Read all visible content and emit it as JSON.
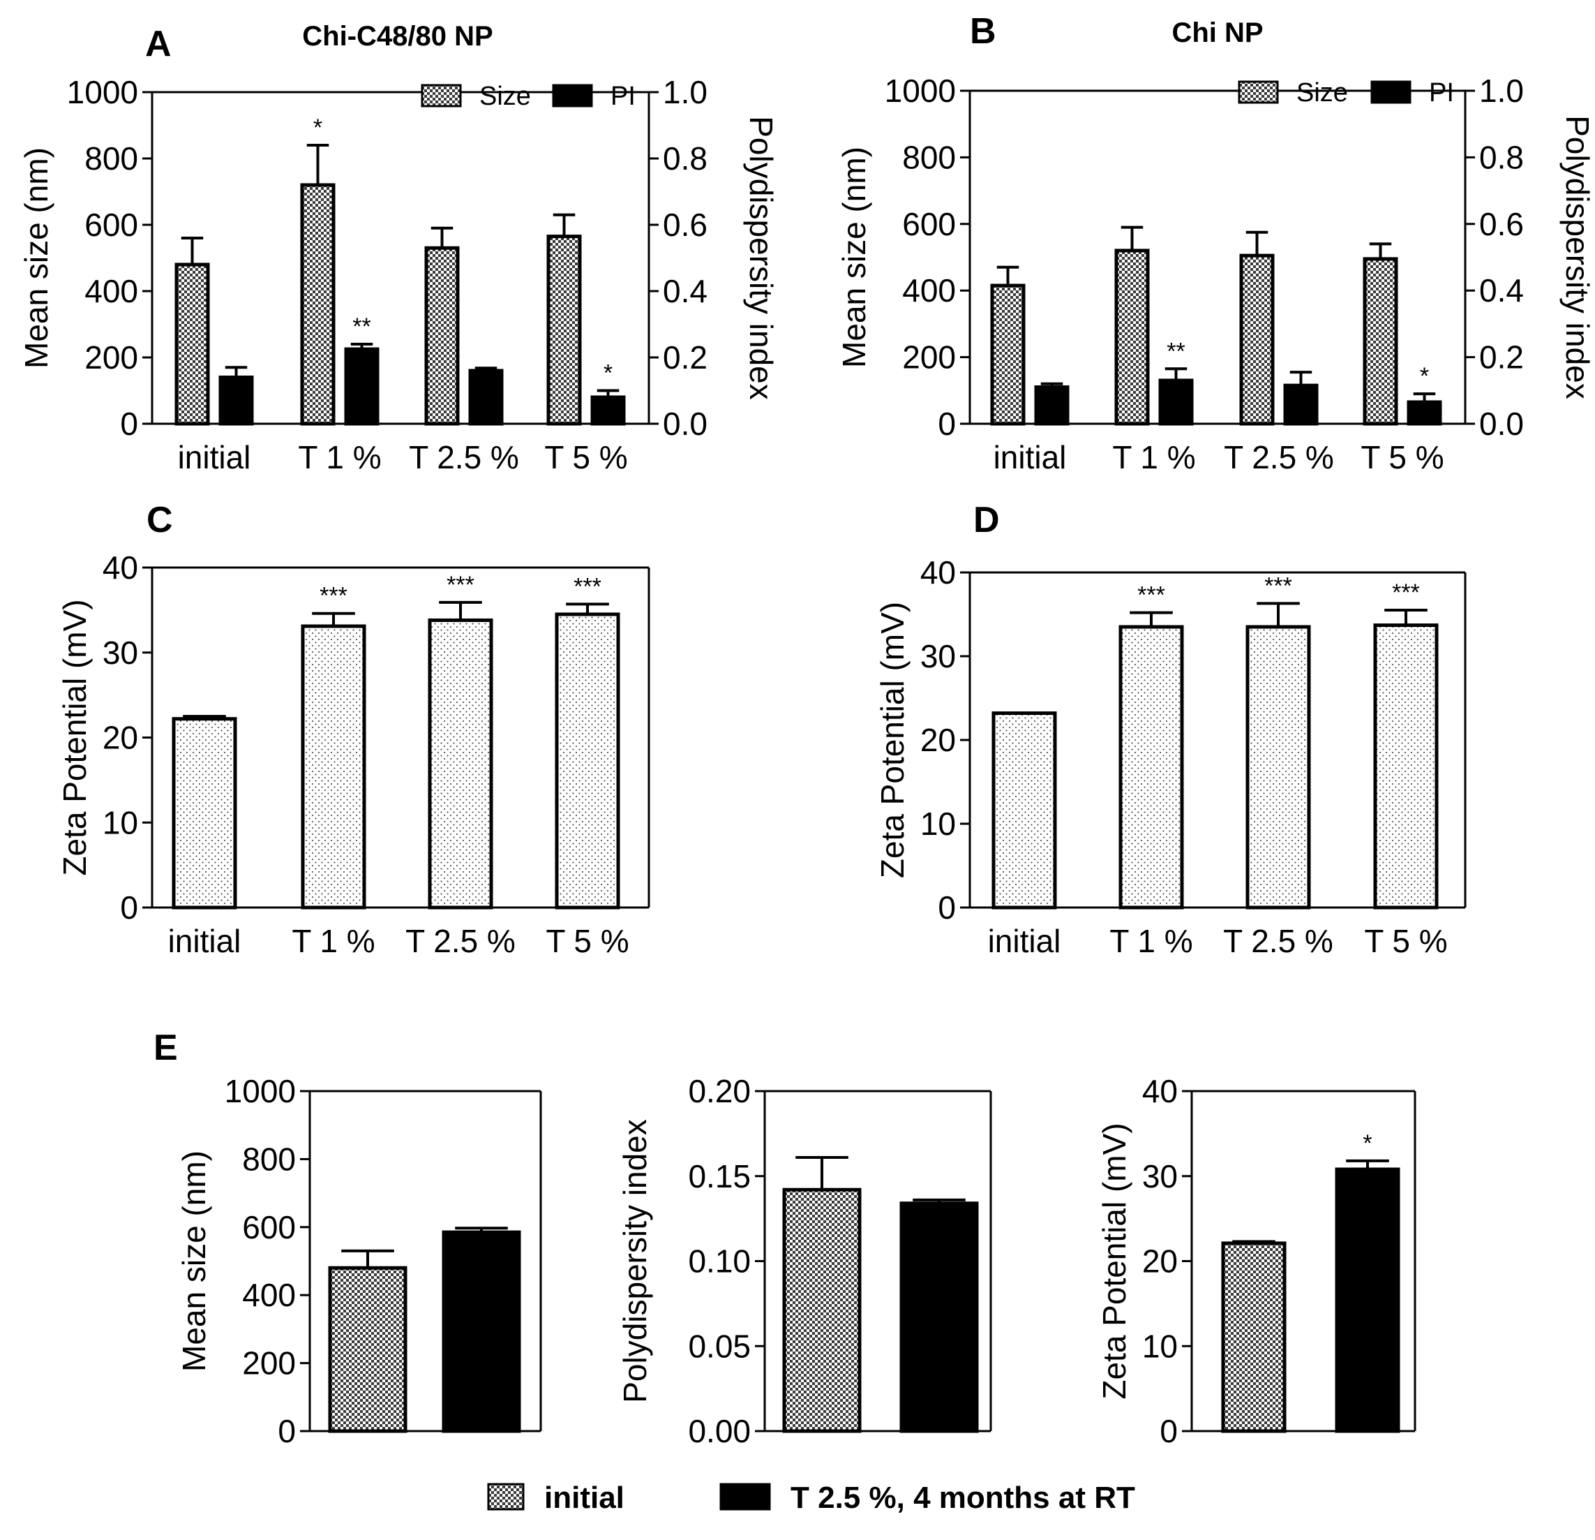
{
  "panels": [
    {
      "id": "A",
      "letter": "A",
      "title": "Chi-C48/80 NP",
      "type": "bar",
      "categories": [
        "initial",
        "T 1 %",
        "T 2.5 %",
        "T 5 %"
      ],
      "ylabel": "Mean size (nm)",
      "ylim": [
        0,
        1000
      ],
      "yticks": [
        "0",
        "200",
        "400",
        "600",
        "800",
        "1000"
      ],
      "y2label": "Polydispersity index",
      "y2lim": [
        0,
        1.0
      ],
      "y2ticks": [
        "0.0",
        "0.2",
        "0.4",
        "0.6",
        "0.8",
        "1.0"
      ],
      "legend": [
        "Size",
        "PI"
      ],
      "series": [
        {
          "name": "Size",
          "axis": "left",
          "pattern": "checker",
          "values": [
            480,
            720,
            530,
            565
          ],
          "errors": [
            80,
            120,
            60,
            65
          ],
          "sig": [
            "",
            "*",
            "",
            ""
          ]
        },
        {
          "name": "PI",
          "axis": "right",
          "pattern": "solid",
          "values": [
            0.14,
            0.225,
            0.16,
            0.08
          ],
          "errors": [
            0.03,
            0.015,
            0.008,
            0.02
          ],
          "sig": [
            "",
            "**",
            "",
            "*"
          ]
        }
      ]
    },
    {
      "id": "B",
      "letter": "B",
      "title": "Chi NP",
      "type": "bar",
      "categories": [
        "initial",
        "T 1 %",
        "T 2.5 %",
        "T 5 %"
      ],
      "ylabel": "Mean size (nm)",
      "ylim": [
        0,
        1000
      ],
      "yticks": [
        "0",
        "200",
        "400",
        "600",
        "800",
        "1000"
      ],
      "y2label": "Polydispersity index",
      "y2lim": [
        0,
        1.0
      ],
      "y2ticks": [
        "0.0",
        "0.2",
        "0.4",
        "0.6",
        "0.8",
        "1.0"
      ],
      "legend": [
        "Size",
        "PI"
      ],
      "series": [
        {
          "name": "Size",
          "axis": "left",
          "pattern": "checker",
          "values": [
            415,
            520,
            505,
            495
          ],
          "errors": [
            55,
            70,
            70,
            45
          ],
          "sig": [
            "",
            "",
            "",
            ""
          ]
        },
        {
          "name": "PI",
          "axis": "right",
          "pattern": "solid",
          "values": [
            0.11,
            0.13,
            0.115,
            0.065
          ],
          "errors": [
            0.01,
            0.035,
            0.04,
            0.025
          ],
          "sig": [
            "",
            "**",
            "",
            "*"
          ]
        }
      ]
    },
    {
      "id": "C",
      "letter": "C",
      "title": "",
      "type": "bar",
      "categories": [
        "initial",
        "T 1 %",
        "T 2.5 %",
        "T 5 %"
      ],
      "ylabel": "Zeta Potential (mV)",
      "ylim": [
        0,
        40
      ],
      "yticks": [
        "0",
        "10",
        "20",
        "30",
        "40"
      ],
      "series": [
        {
          "name": "Zeta",
          "axis": "left",
          "pattern": "dots",
          "values": [
            22.2,
            33.1,
            33.8,
            34.5
          ],
          "errors": [
            0.3,
            1.5,
            2.1,
            1.2
          ],
          "sig": [
            "",
            "***",
            "***",
            "***"
          ]
        }
      ]
    },
    {
      "id": "D",
      "letter": "D",
      "title": "",
      "type": "bar",
      "categories": [
        "initial",
        "T 1 %",
        "T 2.5 %",
        "T 5 %"
      ],
      "ylabel": "Zeta Potential (mV)",
      "ylim": [
        0,
        40
      ],
      "yticks": [
        "0",
        "10",
        "20",
        "30",
        "40"
      ],
      "series": [
        {
          "name": "Zeta",
          "axis": "left",
          "pattern": "dots",
          "values": [
            23.2,
            33.5,
            33.5,
            33.7
          ],
          "errors": [
            0,
            1.7,
            2.8,
            1.8
          ],
          "sig": [
            "",
            "***",
            "***",
            "***"
          ]
        }
      ]
    },
    {
      "id": "E1",
      "letter": "E",
      "title": "",
      "type": "bar",
      "categories": [
        "initial",
        "T 2.5 %, 4 months at RT"
      ],
      "ylabel": "Mean size (nm)",
      "ylim": [
        0,
        1000
      ],
      "yticks": [
        "0",
        "200",
        "400",
        "600",
        "800",
        "1000"
      ],
      "series": [
        {
          "name": "Mean size",
          "axis": "left",
          "pattern": "per-bar",
          "patterns": [
            "checker",
            "solid"
          ],
          "values": [
            480,
            585
          ],
          "errors": [
            50,
            12
          ],
          "sig": [
            "",
            ""
          ]
        }
      ]
    },
    {
      "id": "E2",
      "letter": "",
      "title": "",
      "type": "bar",
      "categories": [
        "initial",
        "T 2.5 %, 4 months at RT"
      ],
      "ylabel": "Polydispersity index",
      "ylim": [
        0,
        0.2
      ],
      "yticks": [
        "0.00",
        "0.05",
        "0.10",
        "0.15",
        "0.20"
      ],
      "series": [
        {
          "name": "PI",
          "axis": "left",
          "pattern": "per-bar",
          "patterns": [
            "checker",
            "solid"
          ],
          "values": [
            0.142,
            0.134
          ],
          "errors": [
            0.019,
            0.002
          ],
          "sig": [
            "",
            ""
          ]
        }
      ]
    },
    {
      "id": "E3",
      "letter": "",
      "title": "",
      "type": "bar",
      "categories": [
        "initial",
        "T 2.5 %, 4 months at RT"
      ],
      "ylabel": "Zeta Potential (mV)",
      "ylim": [
        0,
        40
      ],
      "yticks": [
        "0",
        "10",
        "20",
        "30",
        "40"
      ],
      "series": [
        {
          "name": "Zeta",
          "axis": "left",
          "pattern": "per-bar",
          "patterns": [
            "checker",
            "solid"
          ],
          "values": [
            22.1,
            30.8
          ],
          "errors": [
            0.2,
            1.0
          ],
          "sig": [
            "",
            "*"
          ]
        }
      ]
    }
  ],
  "bottom_legend": [
    {
      "label": "initial",
      "pattern": "checker"
    },
    {
      "label": "T 2.5 %, 4 months at RT",
      "pattern": "solid"
    }
  ],
  "chart_data": [
    {
      "type": "bar",
      "title": "Chi-C48/80 NP",
      "categories": [
        "initial",
        "T 1 %",
        "T 2.5 %",
        "T 5 %"
      ],
      "ylabel": "Mean size (nm)",
      "y2label": "Polydispersity index",
      "ylim": [
        0,
        1000
      ],
      "y2lim": [
        0,
        1.0
      ],
      "series": [
        {
          "name": "Size",
          "values": [
            480,
            720,
            530,
            565
          ]
        },
        {
          "name": "PI",
          "values": [
            0.14,
            0.225,
            0.16,
            0.08
          ]
        }
      ]
    },
    {
      "type": "bar",
      "title": "Chi NP",
      "categories": [
        "initial",
        "T 1 %",
        "T 2.5 %",
        "T 5 %"
      ],
      "ylabel": "Mean size (nm)",
      "y2label": "Polydispersity index",
      "ylim": [
        0,
        1000
      ],
      "y2lim": [
        0,
        1.0
      ],
      "series": [
        {
          "name": "Size",
          "values": [
            415,
            520,
            505,
            495
          ]
        },
        {
          "name": "PI",
          "values": [
            0.11,
            0.13,
            0.115,
            0.065
          ]
        }
      ]
    },
    {
      "type": "bar",
      "title": "",
      "categories": [
        "initial",
        "T 1 %",
        "T 2.5 %",
        "T 5 %"
      ],
      "ylabel": "Zeta Potential (mV)",
      "ylim": [
        0,
        40
      ],
      "series": [
        {
          "name": "Zeta",
          "values": [
            22.2,
            33.1,
            33.8,
            34.5
          ]
        }
      ]
    },
    {
      "type": "bar",
      "title": "",
      "categories": [
        "initial",
        "T 1 %",
        "T 2.5 %",
        "T 5 %"
      ],
      "ylabel": "Zeta Potential (mV)",
      "ylim": [
        0,
        40
      ],
      "series": [
        {
          "name": "Zeta",
          "values": [
            23.2,
            33.5,
            33.5,
            33.7
          ]
        }
      ]
    },
    {
      "type": "bar",
      "title": "",
      "categories": [
        "initial",
        "T 2.5 %, 4 months at RT"
      ],
      "ylabel": "Mean size (nm)",
      "ylim": [
        0,
        1000
      ],
      "series": [
        {
          "name": "Mean size",
          "values": [
            480,
            585
          ]
        }
      ]
    },
    {
      "type": "bar",
      "title": "",
      "categories": [
        "initial",
        "T 2.5 %, 4 months at RT"
      ],
      "ylabel": "Polydispersity index",
      "ylim": [
        0,
        0.2
      ],
      "series": [
        {
          "name": "PI",
          "values": [
            0.142,
            0.134
          ]
        }
      ]
    },
    {
      "type": "bar",
      "title": "",
      "categories": [
        "initial",
        "T 2.5 %, 4 months at RT"
      ],
      "ylabel": "Zeta Potential (mV)",
      "ylim": [
        0,
        40
      ],
      "series": [
        {
          "name": "Zeta",
          "values": [
            22.1,
            30.8
          ]
        }
      ]
    }
  ]
}
